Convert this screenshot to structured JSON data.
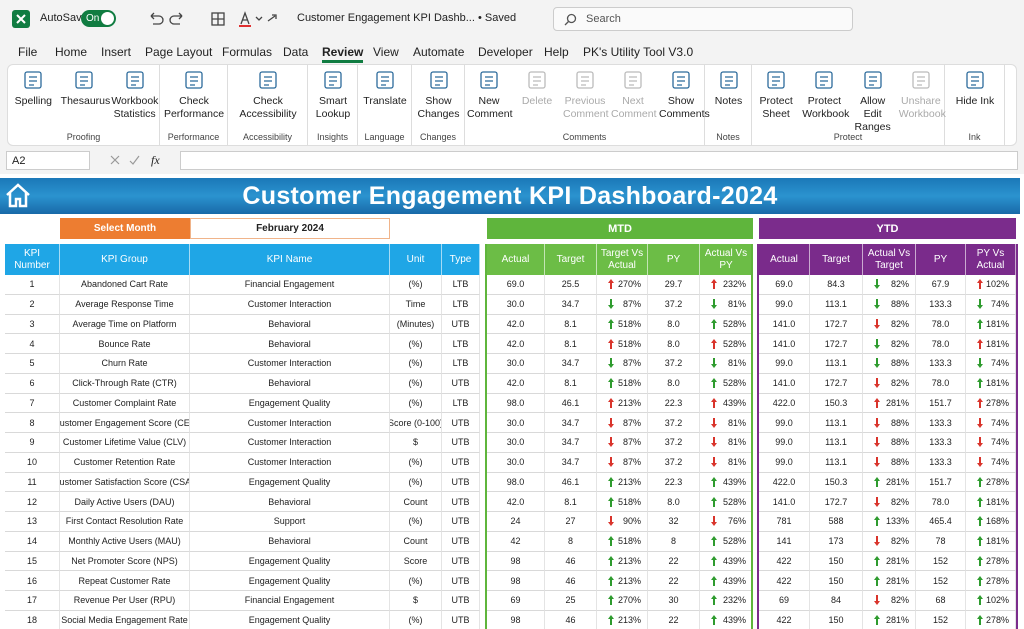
{
  "titlebar": {
    "autosave": "AutoSave",
    "toggle": "On",
    "filename": "Customer Engagement KPI Dashb...",
    "saved": "• Saved",
    "search": "Search"
  },
  "menu": {
    "tabs": [
      "File",
      "Home",
      "Insert",
      "Page Layout",
      "Formulas",
      "Data",
      "Review",
      "View",
      "Automate",
      "Developer",
      "Help",
      "PK's Utility Tool V3.0"
    ],
    "active": "Review"
  },
  "ribbon": {
    "groups": [
      {
        "label": "Proofing",
        "buttons": [
          {
            "label": "Spelling"
          },
          {
            "label": "Thesaurus"
          },
          {
            "label": "Workbook Statistics"
          }
        ]
      },
      {
        "label": "Performance",
        "buttons": [
          {
            "label": "Check Performance"
          }
        ]
      },
      {
        "label": "Accessibility",
        "buttons": [
          {
            "label": "Check Accessibility"
          }
        ]
      },
      {
        "label": "Insights",
        "buttons": [
          {
            "label": "Smart Lookup"
          }
        ]
      },
      {
        "label": "Language",
        "buttons": [
          {
            "label": "Translate"
          }
        ]
      },
      {
        "label": "Changes",
        "buttons": [
          {
            "label": "Show Changes"
          }
        ]
      },
      {
        "label": "Comments",
        "buttons": [
          {
            "label": "New Comment"
          },
          {
            "label": "Delete",
            "disabled": true
          },
          {
            "label": "Previous Comment",
            "disabled": true
          },
          {
            "label": "Next Comment",
            "disabled": true
          },
          {
            "label": "Show Comments"
          }
        ]
      },
      {
        "label": "Notes",
        "buttons": [
          {
            "label": "Notes"
          }
        ]
      },
      {
        "label": "Protect",
        "buttons": [
          {
            "label": "Protect Sheet"
          },
          {
            "label": "Protect Workbook"
          },
          {
            "label": "Allow Edit Ranges"
          },
          {
            "label": "Unshare Workbook",
            "disabled": true
          }
        ]
      },
      {
        "label": "Ink",
        "buttons": [
          {
            "label": "Hide Ink"
          }
        ]
      }
    ]
  },
  "formula_bar": {
    "name_box": "A2",
    "fx": "fx"
  },
  "dashboard": {
    "title": "Customer Engagement KPI Dashboard-2024",
    "select_month_label": "Select Month",
    "month": "February 2024",
    "mtd_label": "MTD",
    "ytd_label": "YTD",
    "kpi_headers": [
      "KPI Number",
      "KPI Group",
      "KPI Name",
      "Unit",
      "Type"
    ],
    "mtd_headers": [
      "Actual",
      "Target",
      "Target Vs Actual",
      "PY",
      "Actual Vs PY"
    ],
    "ytd_headers": [
      "Actual",
      "Target",
      "Actual Vs Target",
      "PY",
      "PY Vs Actual"
    ],
    "rows": [
      {
        "kpi": [
          "1",
          "Abandoned Cart Rate",
          "Financial Engagement",
          "(%)",
          "LTB"
        ],
        "mtd": [
          "69.0",
          "25.5",
          "270%",
          "29.7",
          "232%"
        ],
        "ytd": [
          "69.0",
          "84.3",
          "82%",
          "67.9",
          "102%"
        ],
        "icons": [
          "up-red",
          "up-red",
          "down-green",
          "up-red"
        ]
      },
      {
        "kpi": [
          "2",
          "Average Response Time",
          "Customer Interaction",
          "Time",
          "LTB"
        ],
        "mtd": [
          "30.0",
          "34.7",
          "87%",
          "37.2",
          "81%"
        ],
        "ytd": [
          "99.0",
          "113.1",
          "88%",
          "133.3",
          "74%"
        ],
        "icons": [
          "down-green",
          "down-green",
          "down-green",
          "down-green"
        ]
      },
      {
        "kpi": [
          "3",
          "Average Time on Platform",
          "Behavioral",
          "(Minutes)",
          "UTB"
        ],
        "mtd": [
          "42.0",
          "8.1",
          "518%",
          "8.0",
          "528%"
        ],
        "ytd": [
          "141.0",
          "172.7",
          "82%",
          "78.0",
          "181%"
        ],
        "icons": [
          "up-green",
          "up-green",
          "down-red",
          "up-green"
        ]
      },
      {
        "kpi": [
          "4",
          "Bounce Rate",
          "Behavioral",
          "(%)",
          "LTB"
        ],
        "mtd": [
          "42.0",
          "8.1",
          "518%",
          "8.0",
          "528%"
        ],
        "ytd": [
          "141.0",
          "172.7",
          "82%",
          "78.0",
          "181%"
        ],
        "icons": [
          "up-red",
          "up-red",
          "down-green",
          "up-red"
        ]
      },
      {
        "kpi": [
          "5",
          "Churn Rate",
          "Customer Interaction",
          "(%)",
          "LTB"
        ],
        "mtd": [
          "30.0",
          "34.7",
          "87%",
          "37.2",
          "81%"
        ],
        "ytd": [
          "99.0",
          "113.1",
          "88%",
          "133.3",
          "74%"
        ],
        "icons": [
          "down-green",
          "down-green",
          "down-green",
          "down-green"
        ]
      },
      {
        "kpi": [
          "6",
          "Click-Through Rate (CTR)",
          "Behavioral",
          "(%)",
          "UTB"
        ],
        "mtd": [
          "42.0",
          "8.1",
          "518%",
          "8.0",
          "528%"
        ],
        "ytd": [
          "141.0",
          "172.7",
          "82%",
          "78.0",
          "181%"
        ],
        "icons": [
          "up-green",
          "up-green",
          "down-red",
          "up-green"
        ]
      },
      {
        "kpi": [
          "7",
          "Customer Complaint Rate",
          "Engagement Quality",
          "(%)",
          "LTB"
        ],
        "mtd": [
          "98.0",
          "46.1",
          "213%",
          "22.3",
          "439%"
        ],
        "ytd": [
          "422.0",
          "150.3",
          "281%",
          "151.7",
          "278%"
        ],
        "icons": [
          "up-red",
          "up-red",
          "up-red",
          "up-red"
        ]
      },
      {
        "kpi": [
          "8",
          "Customer Engagement Score (CES",
          "Customer Interaction",
          "Score (0-100)",
          "UTB"
        ],
        "mtd": [
          "30.0",
          "34.7",
          "87%",
          "37.2",
          "81%"
        ],
        "ytd": [
          "99.0",
          "113.1",
          "88%",
          "133.3",
          "74%"
        ],
        "icons": [
          "down-red",
          "down-red",
          "down-red",
          "down-red"
        ]
      },
      {
        "kpi": [
          "9",
          "Customer Lifetime Value (CLV)",
          "Customer Interaction",
          "$",
          "UTB"
        ],
        "mtd": [
          "30.0",
          "34.7",
          "87%",
          "37.2",
          "81%"
        ],
        "ytd": [
          "99.0",
          "113.1",
          "88%",
          "133.3",
          "74%"
        ],
        "icons": [
          "down-red",
          "down-red",
          "down-red",
          "down-red"
        ]
      },
      {
        "kpi": [
          "10",
          "Customer Retention Rate",
          "Customer Interaction",
          "(%)",
          "UTB"
        ],
        "mtd": [
          "30.0",
          "34.7",
          "87%",
          "37.2",
          "81%"
        ],
        "ytd": [
          "99.0",
          "113.1",
          "88%",
          "133.3",
          "74%"
        ],
        "icons": [
          "down-red",
          "down-red",
          "down-red",
          "down-red"
        ]
      },
      {
        "kpi": [
          "11",
          "Customer Satisfaction Score (CSAT",
          "Engagement Quality",
          "(%)",
          "UTB"
        ],
        "mtd": [
          "98.0",
          "46.1",
          "213%",
          "22.3",
          "439%"
        ],
        "ytd": [
          "422.0",
          "150.3",
          "281%",
          "151.7",
          "278%"
        ],
        "icons": [
          "up-green",
          "up-green",
          "up-green",
          "up-green"
        ]
      },
      {
        "kpi": [
          "12",
          "Daily Active Users (DAU)",
          "Behavioral",
          "Count",
          "UTB"
        ],
        "mtd": [
          "42.0",
          "8.1",
          "518%",
          "8.0",
          "528%"
        ],
        "ytd": [
          "141.0",
          "172.7",
          "82%",
          "78.0",
          "181%"
        ],
        "icons": [
          "up-green",
          "up-green",
          "down-red",
          "up-green"
        ]
      },
      {
        "kpi": [
          "13",
          "First Contact Resolution Rate",
          "Support",
          "(%)",
          "UTB"
        ],
        "mtd": [
          "24",
          "27",
          "90%",
          "32",
          "76%"
        ],
        "ytd": [
          "781",
          "588",
          "133%",
          "465.4",
          "168%"
        ],
        "icons": [
          "down-red",
          "down-red",
          "up-green",
          "up-green"
        ]
      },
      {
        "kpi": [
          "14",
          "Monthly Active Users (MAU)",
          "Behavioral",
          "Count",
          "UTB"
        ],
        "mtd": [
          "42",
          "8",
          "518%",
          "8",
          "528%"
        ],
        "ytd": [
          "141",
          "173",
          "82%",
          "78",
          "181%"
        ],
        "icons": [
          "up-green",
          "up-green",
          "down-red",
          "up-green"
        ]
      },
      {
        "kpi": [
          "15",
          "Net Promoter Score (NPS)",
          "Engagement Quality",
          "Score",
          "UTB"
        ],
        "mtd": [
          "98",
          "46",
          "213%",
          "22",
          "439%"
        ],
        "ytd": [
          "422",
          "150",
          "281%",
          "152",
          "278%"
        ],
        "icons": [
          "up-green",
          "up-green",
          "up-green",
          "up-green"
        ]
      },
      {
        "kpi": [
          "16",
          "Repeat Customer Rate",
          "Engagement Quality",
          "(%)",
          "UTB"
        ],
        "mtd": [
          "98",
          "46",
          "213%",
          "22",
          "439%"
        ],
        "ytd": [
          "422",
          "150",
          "281%",
          "152",
          "278%"
        ],
        "icons": [
          "up-green",
          "up-green",
          "up-green",
          "up-green"
        ]
      },
      {
        "kpi": [
          "17",
          "Revenue Per User (RPU)",
          "Financial Engagement",
          "$",
          "UTB"
        ],
        "mtd": [
          "69",
          "25",
          "270%",
          "30",
          "232%"
        ],
        "ytd": [
          "69",
          "84",
          "82%",
          "68",
          "102%"
        ],
        "icons": [
          "up-green",
          "up-green",
          "down-red",
          "up-green"
        ]
      },
      {
        "kpi": [
          "18",
          "Social Media Engagement Rate",
          "Engagement Quality",
          "(%)",
          "UTB"
        ],
        "mtd": [
          "98",
          "46",
          "213%",
          "22",
          "439%"
        ],
        "ytd": [
          "422",
          "150",
          "281%",
          "152",
          "278%"
        ],
        "icons": [
          "up-green",
          "up-green",
          "up-green",
          "up-green"
        ]
      }
    ]
  }
}
